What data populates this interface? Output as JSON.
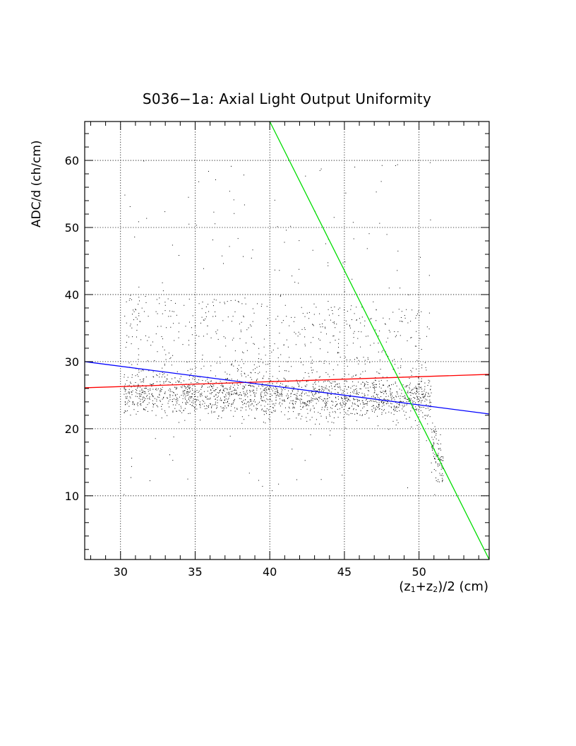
{
  "chart_data": {
    "type": "scatter",
    "title": "S036−1a: Axial Light Output Uniformity",
    "xlabel_parts": [
      "(z",
      "1",
      "+z",
      "2",
      ")/2 (cm)"
    ],
    "ylabel": "ADC/d (ch/cm)",
    "xlim": [
      27.6,
      54.7
    ],
    "ylim": [
      0.5,
      65.8
    ],
    "xticks": [
      30,
      35,
      40,
      45,
      50
    ],
    "yticks": [
      10,
      20,
      30,
      40,
      50,
      60
    ],
    "grid": true,
    "scatter": {
      "color": "#000000",
      "x_range": [
        30.2,
        51.6
      ],
      "core_band": [
        21,
        29
      ],
      "point_count": 3500
    },
    "series": [
      {
        "type": "line",
        "color": "#ff0000",
        "x": [
          27.6,
          54.7
        ],
        "y": [
          26.1,
          28.1
        ]
      },
      {
        "type": "line",
        "color": "#0000ff",
        "x": [
          27.6,
          54.7
        ],
        "y": [
          30.0,
          22.2
        ]
      },
      {
        "type": "line",
        "color": "#00dd00",
        "x": [
          40.0,
          54.7
        ],
        "y": [
          65.8,
          0.5
        ]
      }
    ]
  }
}
